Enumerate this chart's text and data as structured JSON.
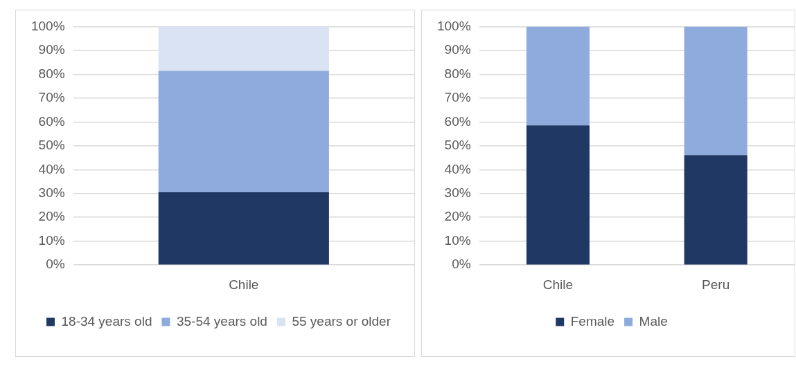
{
  "chart_data": [
    {
      "type": "bar",
      "stacked": true,
      "categories": [
        "Chile"
      ],
      "series": [
        {
          "name": "18-34 years old",
          "color": "#203864",
          "values": [
            30.5
          ]
        },
        {
          "name": "35-54 years old",
          "color": "#8faadc",
          "values": [
            50.9
          ]
        },
        {
          "name": "55 years or older",
          "color": "#dae3f3",
          "values": [
            18.6
          ]
        }
      ],
      "ylim": [
        0,
        100
      ],
      "yticks": [
        {
          "value": 0,
          "label": "0%"
        },
        {
          "value": 10,
          "label": "10%"
        },
        {
          "value": 20,
          "label": "20%"
        },
        {
          "value": 30,
          "label": "30%"
        },
        {
          "value": 40,
          "label": "40%"
        },
        {
          "value": 50,
          "label": "50%"
        },
        {
          "value": 60,
          "label": "60%"
        },
        {
          "value": 70,
          "label": "70%"
        },
        {
          "value": 80,
          "label": "80%"
        },
        {
          "value": 90,
          "label": "90%"
        },
        {
          "value": 100,
          "label": "100%"
        }
      ],
      "grid": "y",
      "legend": "bottom"
    },
    {
      "type": "bar",
      "stacked": true,
      "categories": [
        "Chile",
        "Peru"
      ],
      "series": [
        {
          "name": "Female",
          "color": "#203864",
          "values": [
            58.6,
            46.1
          ]
        },
        {
          "name": "Male",
          "color": "#8faadc",
          "values": [
            41.4,
            53.9
          ]
        }
      ],
      "ylim": [
        0,
        100
      ],
      "yticks": [
        {
          "value": 0,
          "label": "0%"
        },
        {
          "value": 10,
          "label": "10%"
        },
        {
          "value": 20,
          "label": "20%"
        },
        {
          "value": 30,
          "label": "30%"
        },
        {
          "value": 40,
          "label": "40%"
        },
        {
          "value": 50,
          "label": "50%"
        },
        {
          "value": 60,
          "label": "60%"
        },
        {
          "value": 70,
          "label": "70%"
        },
        {
          "value": 80,
          "label": "80%"
        },
        {
          "value": 90,
          "label": "90%"
        },
        {
          "value": 100,
          "label": "100%"
        }
      ],
      "grid": "y",
      "legend": "bottom"
    }
  ]
}
